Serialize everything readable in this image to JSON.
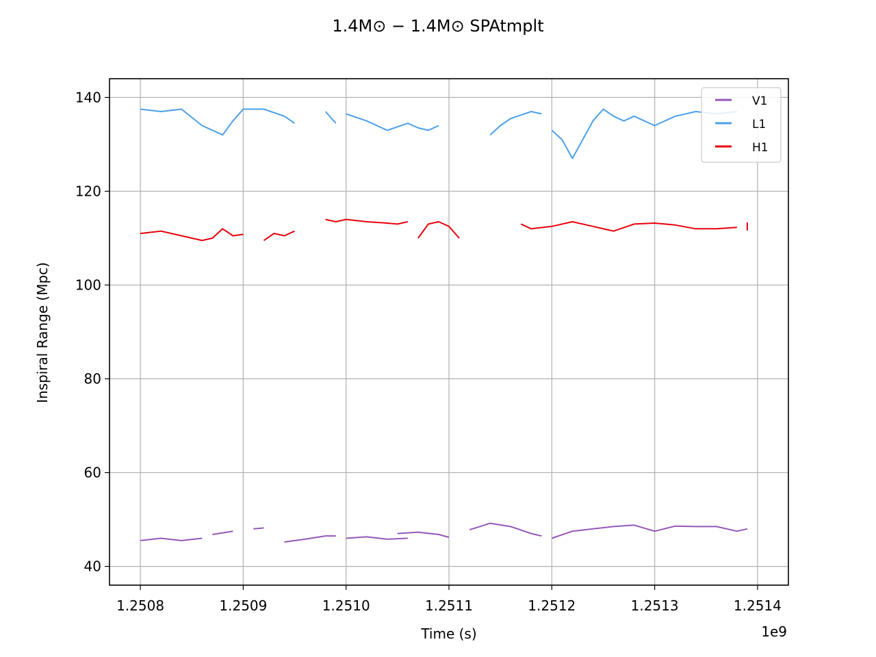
{
  "chart_data": {
    "type": "line",
    "title": "1.4M⊙ − 1.4M⊙ SPAtmplt",
    "xlabel": "Time (s)",
    "ylabel": "Inspiral Range (Mpc)",
    "x_offset_label": "1e9",
    "xlim": [
      1.25077,
      1.25143
    ],
    "ylim": [
      36,
      144
    ],
    "x_ticks": [
      1.2508,
      1.2509,
      1.251,
      1.2511,
      1.2512,
      1.2513,
      1.2514
    ],
    "x_tick_labels": [
      "1.2508",
      "1.2509",
      "1.2510",
      "1.2511",
      "1.2512",
      "1.2513",
      "1.2514"
    ],
    "y_ticks": [
      40,
      60,
      80,
      100,
      120,
      140
    ],
    "y_tick_labels": [
      "40",
      "60",
      "80",
      "100",
      "120",
      "140"
    ],
    "grid": true,
    "legend_position": "top-right",
    "series": [
      {
        "name": "V1",
        "color": "#9457b8",
        "segments": [
          [
            [
              1.2508,
              45.5
            ],
            [
              1.25082,
              46.0
            ],
            [
              1.25084,
              45.5
            ],
            [
              1.25086,
              46.0
            ]
          ],
          [
            [
              1.25087,
              46.8
            ],
            [
              1.25089,
              47.5
            ]
          ],
          [
            [
              1.25091,
              48.0
            ],
            [
              1.25092,
              48.2
            ]
          ],
          [
            [
              1.25094,
              45.2
            ],
            [
              1.25096,
              45.8
            ],
            [
              1.25098,
              46.5
            ],
            [
              1.25099,
              46.5
            ]
          ],
          [
            [
              1.251,
              46.0
            ],
            [
              1.25102,
              46.3
            ],
            [
              1.25104,
              45.8
            ],
            [
              1.25106,
              46.0
            ]
          ],
          [
            [
              1.25105,
              47.0
            ],
            [
              1.25107,
              47.3
            ],
            [
              1.25109,
              46.8
            ],
            [
              1.2511,
              46.2
            ]
          ],
          [
            [
              1.25112,
              47.8
            ],
            [
              1.25113,
              48.5
            ],
            [
              1.25114,
              49.2
            ],
            [
              1.25116,
              48.5
            ],
            [
              1.25118,
              47.0
            ],
            [
              1.25119,
              46.5
            ]
          ],
          [
            [
              1.2512,
              46.0
            ],
            [
              1.25122,
              47.5
            ],
            [
              1.25124,
              48.0
            ],
            [
              1.25126,
              48.5
            ],
            [
              1.25128,
              48.8
            ],
            [
              1.2513,
              47.5
            ],
            [
              1.25132,
              48.6
            ],
            [
              1.25134,
              48.5
            ],
            [
              1.25136,
              48.5
            ],
            [
              1.25138,
              47.5
            ],
            [
              1.25139,
              48.0
            ]
          ]
        ]
      },
      {
        "name": "L1",
        "color": "#4a9fea",
        "segments": [
          [
            [
              1.2508,
              137.5
            ],
            [
              1.25082,
              137.0
            ],
            [
              1.25084,
              137.5
            ],
            [
              1.25086,
              134.0
            ],
            [
              1.25088,
              132.0
            ],
            [
              1.25089,
              135.0
            ],
            [
              1.2509,
              137.5
            ],
            [
              1.25092,
              137.5
            ],
            [
              1.25094,
              136.0
            ],
            [
              1.25095,
              134.5
            ]
          ],
          [
            [
              1.25098,
              137.0
            ],
            [
              1.25099,
              134.5
            ]
          ],
          [
            [
              1.251,
              136.5
            ],
            [
              1.25102,
              135.0
            ],
            [
              1.25104,
              133.0
            ],
            [
              1.25106,
              134.5
            ],
            [
              1.25107,
              133.5
            ],
            [
              1.25108,
              133.0
            ],
            [
              1.25109,
              134.0
            ]
          ],
          [
            [
              1.25114,
              132.0
            ],
            [
              1.25115,
              134.0
            ],
            [
              1.25116,
              135.5
            ],
            [
              1.25118,
              137.0
            ],
            [
              1.25119,
              136.5
            ]
          ],
          [
            [
              1.2512,
              133.0
            ],
            [
              1.25121,
              131.0
            ],
            [
              1.25122,
              127.0
            ],
            [
              1.25123,
              131.0
            ],
            [
              1.25124,
              135.0
            ],
            [
              1.25125,
              137.5
            ],
            [
              1.25126,
              136.0
            ],
            [
              1.25127,
              135.0
            ],
            [
              1.25128,
              136.0
            ],
            [
              1.2513,
              134.0
            ],
            [
              1.25132,
              136.0
            ],
            [
              1.25134,
              137.0
            ],
            [
              1.25136,
              136.5
            ],
            [
              1.25138,
              137.0
            ]
          ]
        ]
      },
      {
        "name": "H1",
        "color": "#e8000b",
        "segments": [
          [
            [
              1.2508,
              111.0
            ],
            [
              1.25082,
              111.5
            ],
            [
              1.25084,
              110.5
            ],
            [
              1.25086,
              109.5
            ],
            [
              1.25087,
              110.0
            ],
            [
              1.25088,
              112.0
            ],
            [
              1.25089,
              110.5
            ],
            [
              1.2509,
              110.8
            ]
          ],
          [
            [
              1.25092,
              109.5
            ],
            [
              1.25093,
              111.0
            ],
            [
              1.25094,
              110.5
            ],
            [
              1.25095,
              111.5
            ]
          ],
          [
            [
              1.25098,
              114.0
            ],
            [
              1.25099,
              113.5
            ],
            [
              1.251,
              114.0
            ],
            [
              1.25102,
              113.5
            ],
            [
              1.25104,
              113.2
            ],
            [
              1.25105,
              113.0
            ],
            [
              1.25106,
              113.5
            ]
          ],
          [
            [
              1.25107,
              110.0
            ],
            [
              1.25108,
              113.0
            ],
            [
              1.25109,
              113.5
            ],
            [
              1.2511,
              112.5
            ],
            [
              1.25111,
              110.0
            ]
          ],
          [
            [
              1.25117,
              113.0
            ],
            [
              1.25118,
              112.0
            ],
            [
              1.2512,
              112.5
            ],
            [
              1.25122,
              113.5
            ],
            [
              1.25124,
              112.5
            ],
            [
              1.25126,
              111.5
            ],
            [
              1.25128,
              113.0
            ],
            [
              1.2513,
              113.2
            ],
            [
              1.25132,
              112.8
            ],
            [
              1.25134,
              112.0
            ],
            [
              1.25136,
              112.0
            ],
            [
              1.25138,
              112.3
            ]
          ],
          [
            [
              1.25139,
              112.5
            ]
          ]
        ]
      }
    ]
  }
}
